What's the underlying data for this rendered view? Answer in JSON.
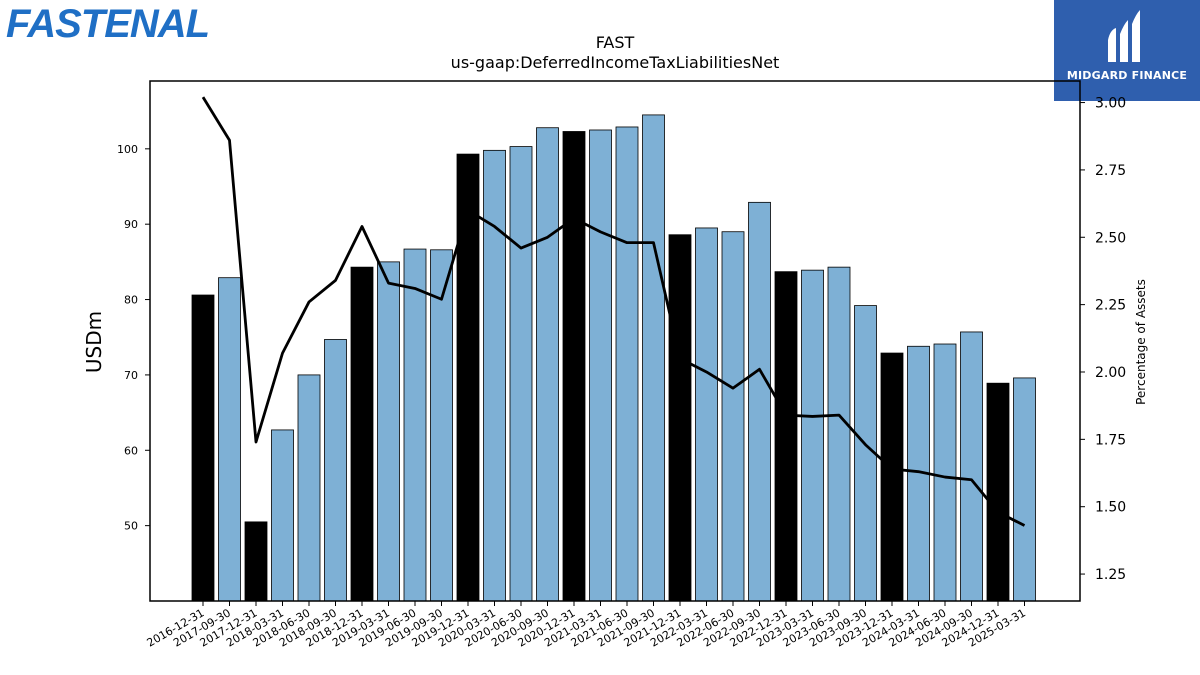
{
  "branding": {
    "left_logo_text": "FASTENAL",
    "left_logo_color": "#1f6fc5",
    "right_logo_text": "MIDGARD FINANCE",
    "right_logo_bg": "#2f5fae"
  },
  "chart_data": {
    "type": "bar",
    "title": "FAST",
    "subtitle": "us-gaap:DeferredIncomeTaxLiabilitiesNet",
    "ylabel": "USDm",
    "y2label": "Percentage of Assets",
    "ylim": [
      40,
      109
    ],
    "y2lim": [
      1.15,
      3.08
    ],
    "yticks": [
      50,
      60,
      70,
      80,
      90,
      100
    ],
    "y2ticks": [
      1.25,
      1.5,
      1.75,
      2.0,
      2.25,
      2.5,
      2.75,
      3.0
    ],
    "y2tick_labels": [
      "1.25",
      "1.50",
      "1.75",
      "2.00",
      "2.25",
      "2.50",
      "2.75",
      "3.00"
    ],
    "categories": [
      "2016-12-31",
      "2017-09-30",
      "2017-12-31",
      "2018-03-31",
      "2018-06-30",
      "2018-09-30",
      "2018-12-31",
      "2019-03-31",
      "2019-06-30",
      "2019-09-30",
      "2019-12-31",
      "2020-03-31",
      "2020-06-30",
      "2020-09-30",
      "2020-12-31",
      "2021-03-31",
      "2021-06-30",
      "2021-09-30",
      "2021-12-31",
      "2022-03-31",
      "2022-06-30",
      "2022-09-30",
      "2022-12-31",
      "2023-03-31",
      "2023-06-30",
      "2023-09-30",
      "2023-12-31",
      "2024-03-31",
      "2024-06-30",
      "2024-09-30",
      "2024-12-31",
      "2025-03-31"
    ],
    "series": [
      {
        "type": "bar",
        "axis": "left",
        "values": [
          80.6,
          82.9,
          50.5,
          62.7,
          70.0,
          74.7,
          84.3,
          85.0,
          86.7,
          86.6,
          99.3,
          99.8,
          100.3,
          102.8,
          102.3,
          102.5,
          102.9,
          104.5,
          88.6,
          89.5,
          89.0,
          92.9,
          83.7,
          83.9,
          84.3,
          79.2,
          72.9,
          73.8,
          74.1,
          75.7,
          68.9,
          69.6
        ],
        "colors": [
          "#000000",
          "#7eb0d5",
          "#000000",
          "#7eb0d5",
          "#7eb0d5",
          "#7eb0d5",
          "#000000",
          "#7eb0d5",
          "#7eb0d5",
          "#7eb0d5",
          "#000000",
          "#7eb0d5",
          "#7eb0d5",
          "#7eb0d5",
          "#000000",
          "#7eb0d5",
          "#7eb0d5",
          "#7eb0d5",
          "#000000",
          "#7eb0d5",
          "#7eb0d5",
          "#7eb0d5",
          "#000000",
          "#7eb0d5",
          "#7eb0d5",
          "#7eb0d5",
          "#000000",
          "#7eb0d5",
          "#7eb0d5",
          "#7eb0d5",
          "#000000",
          "#7eb0d5"
        ]
      },
      {
        "type": "line",
        "axis": "right",
        "color": "#000000",
        "values": [
          3.02,
          2.86,
          1.74,
          2.07,
          2.26,
          2.34,
          2.54,
          2.33,
          2.31,
          2.27,
          2.6,
          2.54,
          2.46,
          2.5,
          2.57,
          2.52,
          2.48,
          2.48,
          2.05,
          2.0,
          1.94,
          2.01,
          1.84,
          1.835,
          1.84,
          1.73,
          1.64,
          1.63,
          1.61,
          1.6,
          1.48,
          1.43
        ]
      }
    ],
    "grid": false,
    "legend": "none"
  }
}
